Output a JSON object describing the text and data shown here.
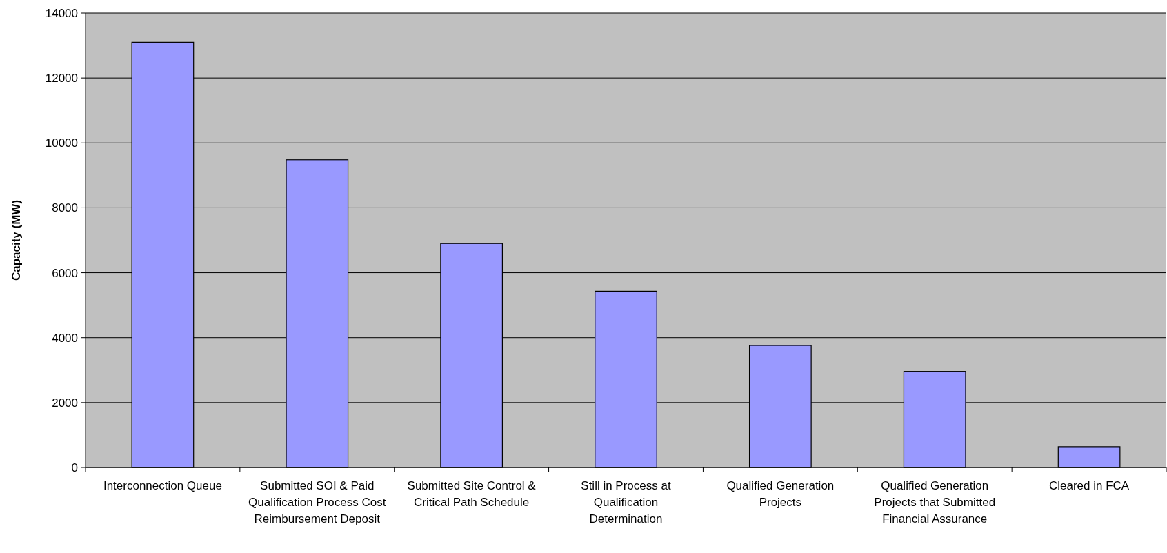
{
  "chart_data": {
    "type": "bar",
    "ylabel": "Capacity (MW)",
    "categories": [
      "Interconnection Queue",
      "Submitted SOI & Paid Qualification Process Cost Reimbursement Deposit",
      "Submitted Site Control & Critical Path Schedule",
      "Still in Process at Qualification Determination",
      "Qualified Generation Projects",
      "Qualified Generation Projects that Submitted Financial Assurance",
      "Cleared in FCA"
    ],
    "values": [
      13100,
      9480,
      6900,
      5430,
      3760,
      2960,
      640
    ],
    "color": "#9999ff",
    "ylim": [
      0,
      14000
    ],
    "yticks": [
      0,
      2000,
      4000,
      6000,
      8000,
      10000,
      12000,
      14000
    ],
    "grid": "y"
  }
}
